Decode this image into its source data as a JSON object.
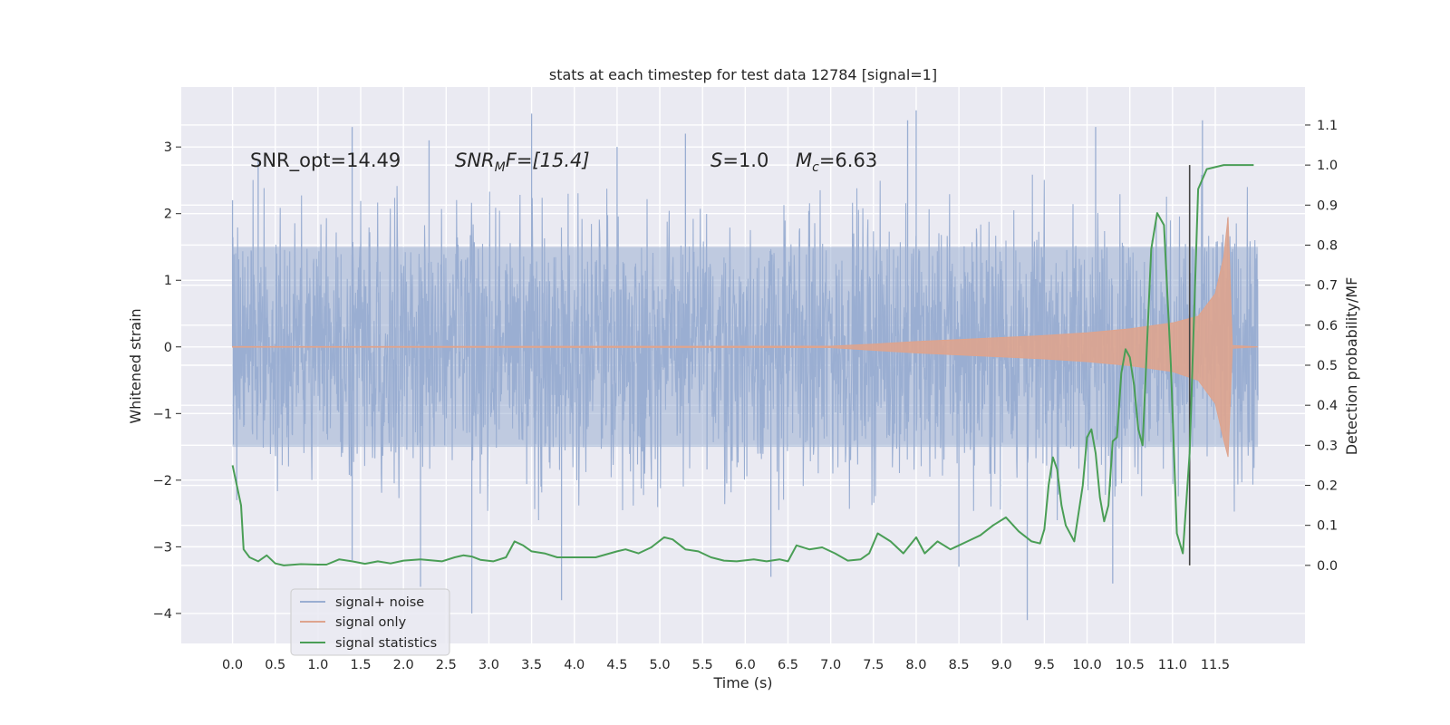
{
  "chart_data": {
    "type": "line",
    "title": "stats at each timestep for test data 12784 [signal=1]",
    "xlabel": "Time (s)",
    "ylabel": "Whitened strain",
    "y2label": "Detection probability/MF",
    "xlim": [
      -0.6,
      12.55
    ],
    "ylim": [
      -4.45,
      3.9
    ],
    "y2lim": [
      -0.195,
      1.195
    ],
    "x_ticks": [
      0.0,
      0.5,
      1.0,
      1.5,
      2.0,
      2.5,
      3.0,
      3.5,
      4.0,
      4.5,
      5.0,
      5.5,
      6.0,
      6.5,
      7.0,
      7.5,
      8.0,
      8.5,
      9.0,
      9.5,
      10.0,
      10.5,
      11.0,
      11.5
    ],
    "x_tick_labels": [
      "0.0",
      "0.5",
      "1.0",
      "1.5",
      "2.0",
      "2.5",
      "3.0",
      "3.5",
      "4.0",
      "4.5",
      "5.0",
      "5.5",
      "6.0",
      "6.5",
      "7.0",
      "7.5",
      "8.0",
      "8.5",
      "9.0",
      "9.5",
      "10.0",
      "10.5",
      "11.0",
      "11.5"
    ],
    "y_ticks": [
      -4,
      -3,
      -2,
      -1,
      0,
      1,
      2,
      3
    ],
    "y_tick_labels": [
      "−4",
      "−3",
      "−2",
      "−1",
      "0",
      "1",
      "2",
      "3"
    ],
    "y2_ticks": [
      0.0,
      0.1,
      0.2,
      0.3,
      0.4,
      0.5,
      0.6,
      0.7,
      0.8,
      0.9,
      1.0,
      1.1
    ],
    "y2_tick_labels": [
      "0.0",
      "0.1",
      "0.2",
      "0.3",
      "0.4",
      "0.5",
      "0.6",
      "0.7",
      "0.8",
      "0.9",
      "1.0",
      "1.1"
    ],
    "grid": true,
    "legend_position": "lower-left",
    "vertical_line_x": 11.2,
    "annotations": {
      "snr_opt": "SNR_opt=14.49",
      "snr_mf_sym": "SNR",
      "snr_mf_sub": "M",
      "snr_mf_rest": "F=[15.4]",
      "s_sym": "S",
      "s_rest": "=1.0",
      "mc_sym": "M",
      "mc_sub": "c",
      "mc_rest": "=6.63"
    },
    "series": [
      {
        "name": "signal+ noise",
        "axis": "left",
        "color": "#9aaed2",
        "t_range": [
          0.0,
          12.0
        ],
        "typical_band": [
          -1.5,
          1.5
        ],
        "extrema": [
          {
            "x": 0.0,
            "y": 2.2
          },
          {
            "x": 0.05,
            "y": -2.3
          },
          {
            "x": 0.3,
            "y": 2.8
          },
          {
            "x": 1.4,
            "y": 3.3
          },
          {
            "x": 1.4,
            "y": -3.2
          },
          {
            "x": 2.2,
            "y": -3.6
          },
          {
            "x": 2.3,
            "y": 3.1
          },
          {
            "x": 2.8,
            "y": -4.0
          },
          {
            "x": 3.5,
            "y": 3.5
          },
          {
            "x": 3.85,
            "y": -3.8
          },
          {
            "x": 4.5,
            "y": 3.0
          },
          {
            "x": 5.3,
            "y": 3.2
          },
          {
            "x": 6.3,
            "y": -3.45
          },
          {
            "x": 7.9,
            "y": 3.4
          },
          {
            "x": 8.0,
            "y": 3.55
          },
          {
            "x": 8.5,
            "y": -3.3
          },
          {
            "x": 9.3,
            "y": -4.1
          },
          {
            "x": 10.1,
            "y": 3.3
          },
          {
            "x": 10.3,
            "y": -3.55
          },
          {
            "x": 11.35,
            "y": 3.4
          }
        ]
      },
      {
        "name": "signal only",
        "axis": "left",
        "color": "#dea48e",
        "envelope": {
          "x": [
            0.0,
            7.0,
            7.5,
            8.0,
            8.5,
            9.0,
            9.5,
            10.0,
            10.5,
            11.0,
            11.3,
            11.5,
            11.6,
            11.65,
            11.7,
            12.0
          ],
          "upper": [
            0.005,
            0.01,
            0.04,
            0.08,
            0.11,
            0.14,
            0.17,
            0.21,
            0.27,
            0.36,
            0.46,
            0.8,
            1.35,
            1.95,
            0.02,
            0.0
          ],
          "lower": [
            -0.005,
            -0.01,
            -0.05,
            -0.09,
            -0.12,
            -0.15,
            -0.18,
            -0.22,
            -0.28,
            -0.37,
            -0.5,
            -0.85,
            -1.4,
            -1.65,
            -0.02,
            0.0
          ]
        }
      },
      {
        "name": "signal statistics",
        "axis": "right",
        "color": "#4a9e56",
        "x": [
          0.0,
          0.1,
          0.13,
          0.2,
          0.3,
          0.4,
          0.5,
          0.6,
          0.8,
          1.0,
          1.1,
          1.25,
          1.4,
          1.55,
          1.7,
          1.85,
          2.0,
          2.2,
          2.45,
          2.6,
          2.7,
          2.8,
          2.9,
          3.05,
          3.2,
          3.3,
          3.4,
          3.5,
          3.65,
          3.8,
          4.0,
          4.25,
          4.5,
          4.6,
          4.75,
          4.9,
          5.05,
          5.15,
          5.3,
          5.45,
          5.6,
          5.75,
          5.9,
          6.1,
          6.25,
          6.4,
          6.5,
          6.6,
          6.75,
          6.9,
          7.05,
          7.2,
          7.35,
          7.45,
          7.55,
          7.7,
          7.85,
          8.0,
          8.1,
          8.25,
          8.4,
          8.5,
          8.6,
          8.75,
          8.9,
          9.05,
          9.2,
          9.35,
          9.45,
          9.5,
          9.55,
          9.6,
          9.65,
          9.7,
          9.75,
          9.85,
          9.95,
          10.0,
          10.05,
          10.1,
          10.15,
          10.2,
          10.25,
          10.3,
          10.35,
          10.4,
          10.45,
          10.5,
          10.55,
          10.6,
          10.65,
          10.75,
          10.82,
          10.9,
          10.98,
          11.05,
          11.12,
          11.2,
          11.3,
          11.4,
          11.6,
          11.8,
          11.95
        ],
        "y": [
          0.25,
          0.15,
          0.04,
          0.02,
          0.01,
          0.025,
          0.005,
          0.0,
          0.003,
          0.002,
          0.002,
          0.015,
          0.01,
          0.004,
          0.01,
          0.005,
          0.012,
          0.015,
          0.01,
          0.02,
          0.025,
          0.022,
          0.014,
          0.01,
          0.02,
          0.06,
          0.05,
          0.035,
          0.03,
          0.02,
          0.02,
          0.02,
          0.035,
          0.04,
          0.03,
          0.045,
          0.07,
          0.065,
          0.04,
          0.035,
          0.02,
          0.012,
          0.01,
          0.015,
          0.01,
          0.015,
          0.01,
          0.05,
          0.04,
          0.045,
          0.03,
          0.012,
          0.015,
          0.03,
          0.08,
          0.06,
          0.03,
          0.07,
          0.03,
          0.06,
          0.04,
          0.05,
          0.06,
          0.075,
          0.1,
          0.12,
          0.085,
          0.06,
          0.055,
          0.09,
          0.2,
          0.27,
          0.24,
          0.15,
          0.1,
          0.06,
          0.2,
          0.32,
          0.34,
          0.28,
          0.17,
          0.11,
          0.15,
          0.31,
          0.32,
          0.48,
          0.54,
          0.52,
          0.45,
          0.34,
          0.3,
          0.79,
          0.88,
          0.85,
          0.5,
          0.08,
          0.03,
          0.28,
          0.94,
          0.99,
          1.0,
          1.0,
          1.0
        ]
      }
    ]
  }
}
